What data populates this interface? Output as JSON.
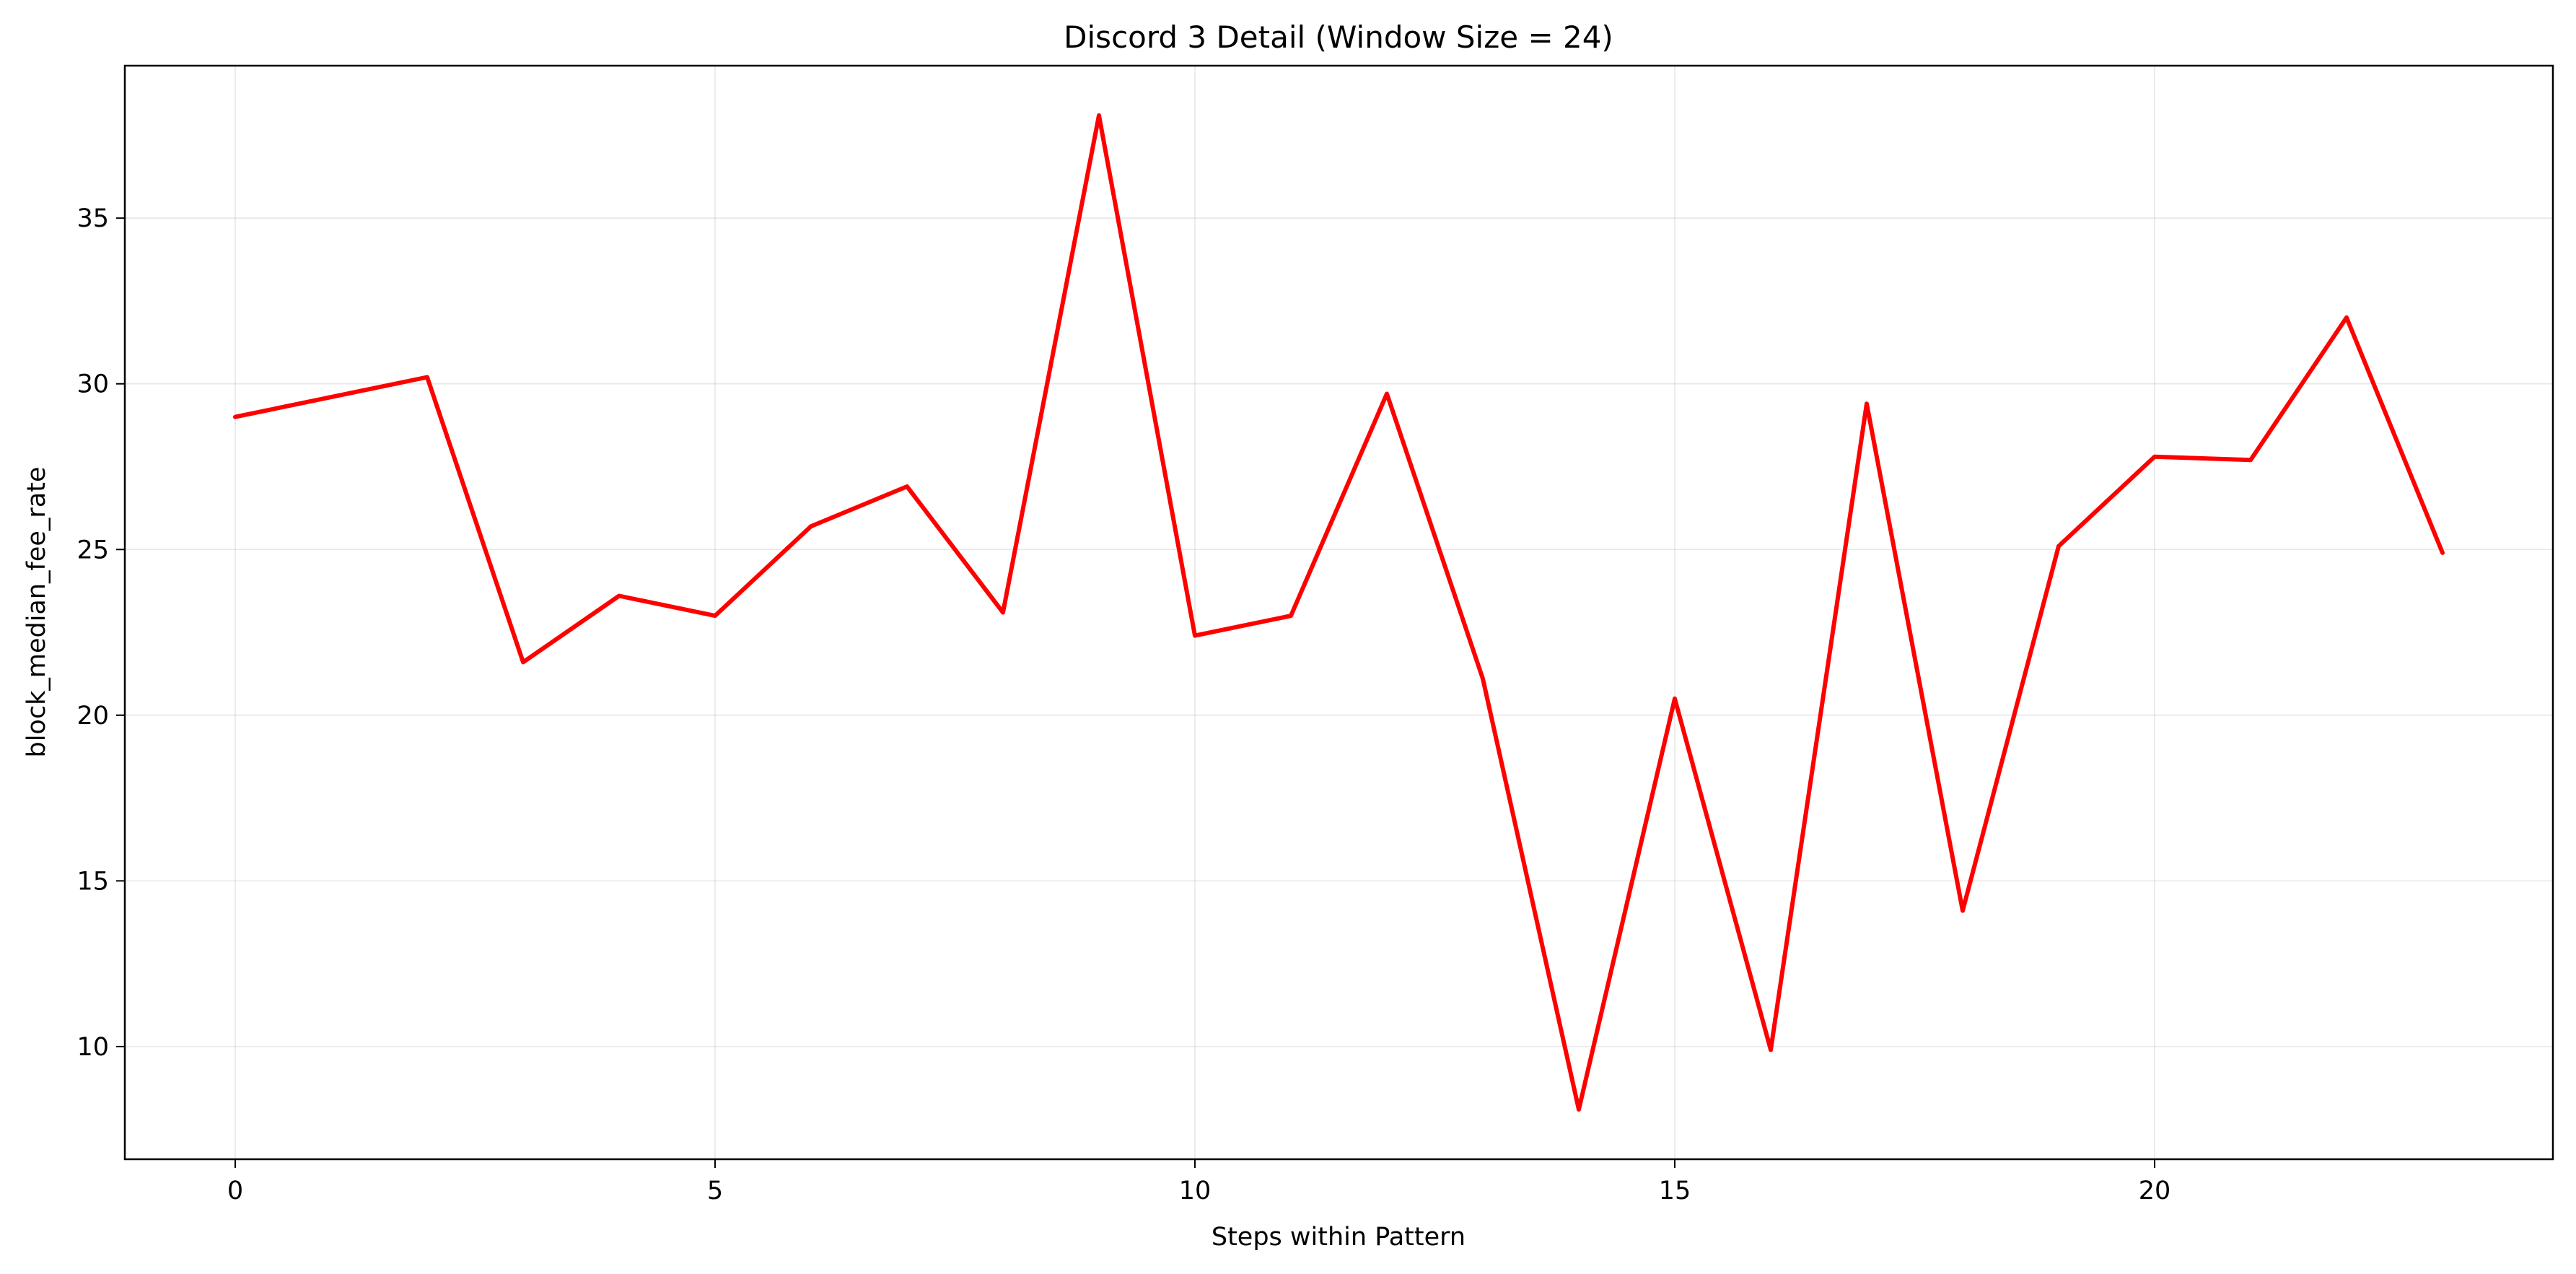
{
  "chart_data": {
    "type": "line",
    "title": "Discord 3 Detail (Window Size = 24)",
    "xlabel": "Steps within Pattern",
    "ylabel": "block_median_fee_rate",
    "xlim": [
      -1.15,
      24.15
    ],
    "ylim": [
      6.6,
      39.6
    ],
    "x_ticks": [
      0,
      5,
      10,
      15,
      20
    ],
    "y_ticks": [
      10,
      15,
      20,
      25,
      30,
      35
    ],
    "grid": true,
    "legend": "none",
    "series": [
      {
        "color": "#ff0000",
        "x": [
          0,
          1,
          2,
          3,
          4,
          5,
          6,
          7,
          8,
          9,
          10,
          11,
          12,
          13,
          14,
          15,
          16,
          17,
          18,
          19,
          20,
          21,
          22,
          23
        ],
        "values": [
          29.0,
          29.6,
          30.2,
          21.6,
          23.6,
          23.0,
          25.7,
          26.9,
          23.1,
          38.1,
          22.4,
          23.0,
          29.7,
          21.1,
          8.1,
          20.5,
          9.9,
          29.4,
          14.1,
          25.1,
          27.8,
          27.7,
          32.0,
          24.9
        ]
      }
    ]
  }
}
